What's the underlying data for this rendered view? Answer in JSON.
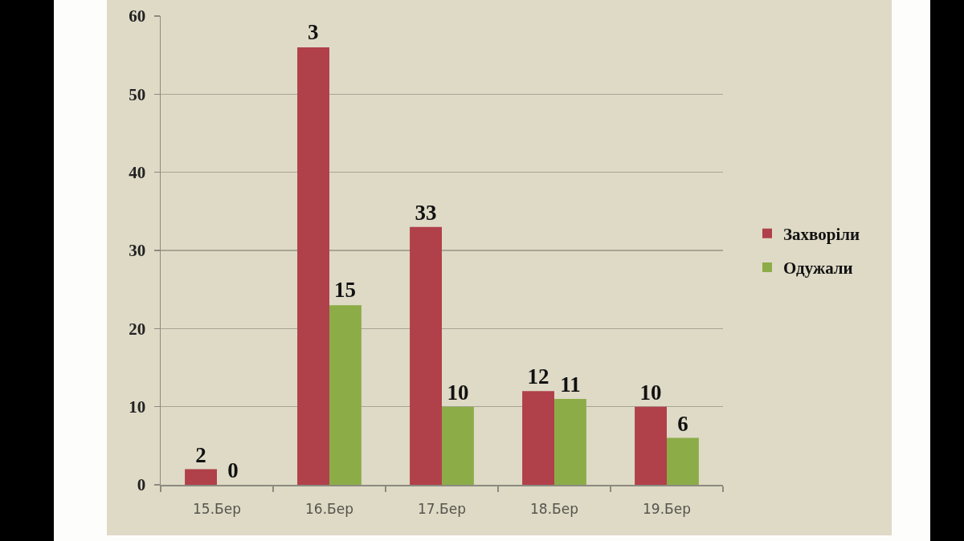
{
  "chart_data": {
    "type": "bar",
    "categories": [
      "15.Бер",
      "16.Бер",
      "17.Бер",
      "18.Бер",
      "19.Бер"
    ],
    "series": [
      {
        "name": "Захворіли",
        "color": "#b0404a",
        "values": [
          2,
          56,
          33,
          12,
          10
        ],
        "value_labels": [
          "2",
          null,
          "33",
          "12",
          "10"
        ]
      },
      {
        "name": "Одужали",
        "color": "#8cac48",
        "values": [
          0,
          23,
          10,
          11,
          6
        ],
        "value_labels": [
          "0",
          null,
          "10",
          "11",
          "6"
        ]
      }
    ],
    "annotations": [
      {
        "text": "3",
        "x": "16.Бер",
        "y": 56
      },
      {
        "text": "15",
        "x": "16.Бер",
        "y": 23
      }
    ],
    "ylim": [
      0,
      60
    ],
    "yticks": [
      0,
      10,
      20,
      30,
      40,
      50,
      60
    ],
    "grid": "y",
    "legend": "right"
  }
}
